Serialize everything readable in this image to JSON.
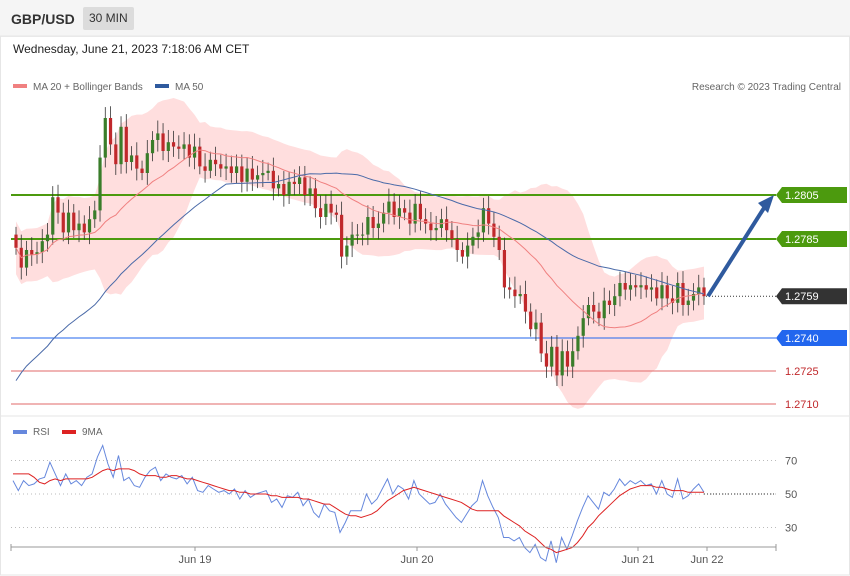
{
  "header": {
    "symbol": "GBP/USD",
    "timeframe": "30 MIN",
    "timestamp": "Wednesday, June 21, 2023 7:18:06 AM CET"
  },
  "legend": {
    "ma20": "MA 20 + Bollinger Bands",
    "ma50": "MA 50",
    "copyright": "Research © 2023 Trading Central"
  },
  "rsi_legend": {
    "rsi": "RSI",
    "ma9": "9MA"
  },
  "colors": {
    "band_fill": "#ffdede",
    "ma20": "#f08080",
    "ma50": "#4a6aa8",
    "up": "#3a7d2a",
    "down": "#c0282b",
    "green_level": "#4c9a0e",
    "blue_level": "#2266ee",
    "red_level": "#e26a6a",
    "current": "#333333",
    "arrow": "#2f5a9e",
    "rsi": "#6688dd",
    "rsi_ma": "#dd2222"
  },
  "chart_data": [
    {
      "type": "candlestick",
      "title": "GBP/USD 30 MIN",
      "x_labels": [
        "Jun 19",
        "Jun 20",
        "Jun 21",
        "Jun 22"
      ],
      "ylim": [
        1.2705,
        1.2835
      ],
      "current_price": 1.2759,
      "levels": [
        {
          "value": 1.2805,
          "label": "1.2805",
          "kind": "resistance"
        },
        {
          "value": 1.2785,
          "label": "1.2785",
          "kind": "resistance"
        },
        {
          "value": 1.2759,
          "label": "1.2759",
          "kind": "current"
        },
        {
          "value": 1.274,
          "label": "1.2740",
          "kind": "pivot"
        },
        {
          "value": 1.2725,
          "label": "1.2725",
          "kind": "support"
        },
        {
          "value": 1.271,
          "label": "1.2710",
          "kind": "support"
        }
      ],
      "close": [
        1.2781,
        1.2772,
        1.278,
        1.2778,
        1.2779,
        1.2784,
        1.2787,
        1.2804,
        1.2797,
        1.2788,
        1.2797,
        1.2789,
        1.2792,
        1.2788,
        1.2794,
        1.2798,
        1.2822,
        1.284,
        1.2828,
        1.2819,
        1.2836,
        1.282,
        1.2823,
        1.2817,
        1.2815,
        1.2824,
        1.283,
        1.2833,
        1.2825,
        1.2829,
        1.2827,
        1.2826,
        1.2828,
        1.2822,
        1.2827,
        1.2818,
        1.2816,
        1.2821,
        1.2819,
        1.2817,
        1.2818,
        1.2815,
        1.2818,
        1.2811,
        1.2817,
        1.2812,
        1.2814,
        1.2815,
        1.2816,
        1.2808,
        1.281,
        1.2805,
        1.2811,
        1.281,
        1.2813,
        1.2805,
        1.2808,
        1.2799,
        1.2795,
        1.2801,
        1.2797,
        1.2796,
        1.2777,
        1.2782,
        1.2787,
        1.2787,
        1.2787,
        1.2795,
        1.279,
        1.2792,
        1.2797,
        1.2802,
        1.2795,
        1.2799,
        1.2797,
        1.2792,
        1.2801,
        1.2794,
        1.2792,
        1.2789,
        1.279,
        1.2794,
        1.2789,
        1.2785,
        1.278,
        1.2777,
        1.2782,
        1.2786,
        1.2788,
        1.2799,
        1.2792,
        1.2786,
        1.278,
        1.2763,
        1.2762,
        1.2759,
        1.276,
        1.2752,
        1.2744,
        1.2747,
        1.2733,
        1.2727,
        1.2736,
        1.2723,
        1.2734,
        1.2727,
        1.2734,
        1.2741,
        1.2749,
        1.2755,
        1.2752,
        1.2749,
        1.2757,
        1.2755,
        1.2759,
        1.2765,
        1.2762,
        1.2764,
        1.2763,
        1.2764,
        1.2762,
        1.2763,
        1.2758,
        1.2764,
        1.2758,
        1.2756,
        1.2765,
        1.2755,
        1.2757,
        1.276,
        1.2763,
        1.2759
      ]
    },
    {
      "type": "line",
      "title": "RSI",
      "series_names": [
        "RSI",
        "9MA"
      ],
      "ylim": [
        20,
        80
      ],
      "y_ticks": [
        70,
        50,
        30
      ],
      "rsi": [
        58,
        52,
        58,
        55,
        56,
        59,
        60,
        69,
        62,
        55,
        62,
        56,
        58,
        55,
        60,
        62,
        72,
        79,
        68,
        60,
        73,
        58,
        60,
        55,
        54,
        60,
        64,
        66,
        58,
        62,
        60,
        59,
        61,
        56,
        60,
        52,
        51,
        55,
        53,
        51,
        52,
        50,
        53,
        47,
        52,
        48,
        50,
        51,
        52,
        45,
        47,
        42,
        49,
        48,
        51,
        43,
        47,
        39,
        36,
        44,
        40,
        39,
        27,
        33,
        40,
        40,
        40,
        50,
        44,
        47,
        53,
        59,
        50,
        55,
        53,
        47,
        58,
        50,
        47,
        44,
        45,
        50,
        44,
        40,
        36,
        33,
        38,
        43,
        46,
        58,
        49,
        42,
        36,
        24,
        24,
        22,
        24,
        18,
        15,
        20,
        12,
        10,
        22,
        9,
        24,
        17,
        25,
        34,
        42,
        49,
        45,
        41,
        51,
        49,
        53,
        59,
        55,
        58,
        56,
        58,
        55,
        56,
        50,
        58,
        50,
        48,
        59,
        47,
        49,
        53,
        56,
        51
      ],
      "ma9": [
        62,
        62,
        62,
        62,
        60,
        57,
        56,
        58,
        59,
        58,
        59,
        59,
        59,
        59,
        59,
        60,
        62,
        64,
        65,
        64,
        65,
        65,
        65,
        64,
        62,
        61,
        61,
        61,
        60,
        60,
        61,
        61,
        60,
        59,
        59,
        58,
        57,
        56,
        55,
        54,
        53,
        52,
        52,
        51,
        51,
        50,
        50,
        50,
        50,
        49,
        49,
        48,
        48,
        48,
        48,
        47,
        47,
        46,
        45,
        44,
        44,
        42,
        40,
        38,
        37,
        37,
        36,
        37,
        38,
        40,
        43,
        46,
        48,
        50,
        52,
        53,
        54,
        53,
        52,
        51,
        50,
        49,
        48,
        47,
        46,
        45,
        43,
        41,
        40,
        40,
        40,
        40,
        40,
        37,
        35,
        33,
        31,
        28,
        26,
        24,
        21,
        18,
        17,
        15,
        16,
        17,
        18,
        21,
        25,
        30,
        33,
        37,
        40,
        43,
        46,
        49,
        51,
        53,
        54,
        55,
        55,
        55,
        54,
        54,
        53,
        52,
        52,
        52,
        51,
        51,
        51,
        51
      ]
    }
  ]
}
